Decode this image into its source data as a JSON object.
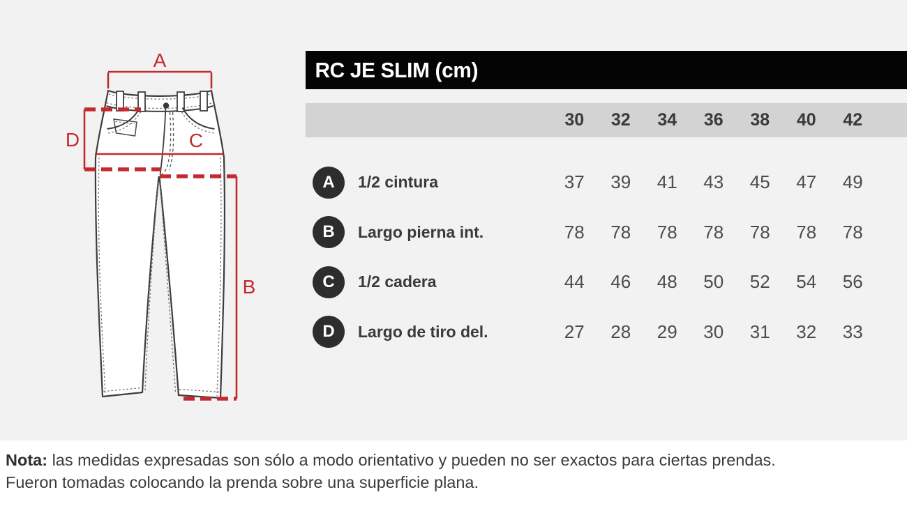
{
  "title": "RC JE SLIM (cm)",
  "table": {
    "sizes": [
      "30",
      "32",
      "34",
      "36",
      "38",
      "40",
      "42"
    ],
    "rows": [
      {
        "key": "A",
        "label": "1/2 cintura",
        "values": [
          "37",
          "39",
          "41",
          "43",
          "45",
          "47",
          "49"
        ]
      },
      {
        "key": "B",
        "label": "Largo pierna int.",
        "values": [
          "78",
          "78",
          "78",
          "78",
          "78",
          "78",
          "78"
        ]
      },
      {
        "key": "C",
        "label": "1/2 cadera",
        "values": [
          "44",
          "46",
          "48",
          "50",
          "52",
          "54",
          "56"
        ]
      },
      {
        "key": "D",
        "label": "Largo de tiro del.",
        "values": [
          "27",
          "28",
          "29",
          "30",
          "31",
          "32",
          "33"
        ]
      }
    ]
  },
  "diagram": {
    "labels": {
      "a": "A",
      "b": "B",
      "c": "C",
      "d": "D"
    }
  },
  "note": {
    "bold_label": "Nota:",
    "line1_rest": " las medidas expresadas son sólo a modo orientativo y pueden no ser exactos para ciertas prendas.",
    "line2": "Fueron tomadas colocando la prenda sobre una superficie plana."
  },
  "colors": {
    "accent_red": "#c4292f",
    "badge_bg": "#2d2d2d",
    "header_bg": "#d3d3d3",
    "title_bg": "#040404",
    "page_bg": "#f2f2f2"
  }
}
